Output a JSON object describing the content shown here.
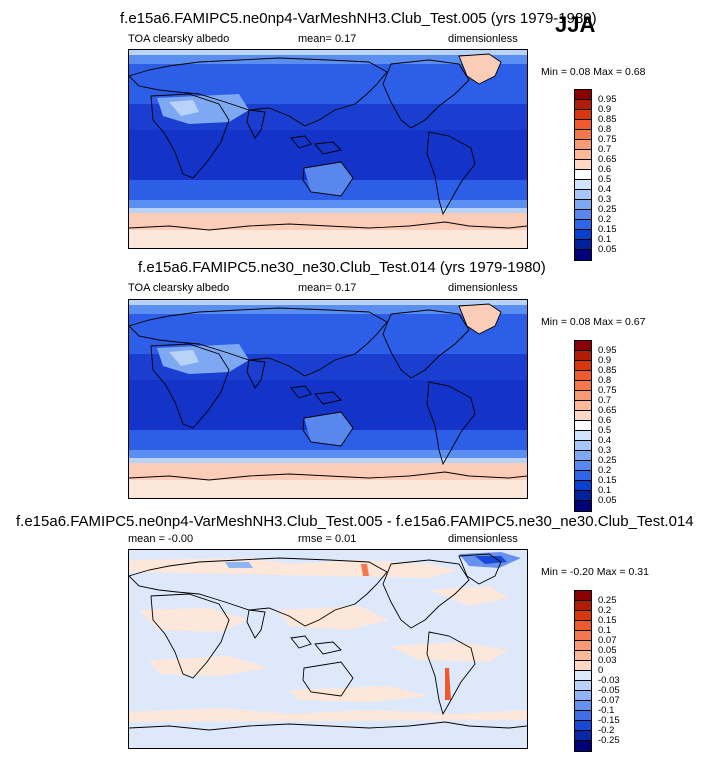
{
  "season": "JJA",
  "panels": [
    {
      "title": "f.e15a6.FAMIPC5.ne0np4-VarMeshNH3.Club_Test.005 (yrs 1979-1980)",
      "variable": "TOA clearsky albedo",
      "stat": "mean=  0.17",
      "units": "dimensionless",
      "minmax": "Min =  0.08 Max =  0.68",
      "levels": [
        "0.95",
        "0.9",
        "0.85",
        "0.8",
        "0.75",
        "0.7",
        "0.65",
        "0.6",
        "0.5",
        "0.4",
        "0.3",
        "0.25",
        "0.2",
        "0.15",
        "0.1",
        "0.05"
      ],
      "colors": [
        "#8b0000",
        "#b21b06",
        "#d9360e",
        "#ee5a2d",
        "#f4784e",
        "#f79a73",
        "#fbb99a",
        "#fed8c6",
        "#ffffff",
        "#d0e4fb",
        "#a7c7f7",
        "#7ea8f2",
        "#5888ee",
        "#2d66e6",
        "#0a40d1",
        "#00209d",
        "#000078"
      ]
    },
    {
      "title": "f.e15a6.FAMIPC5.ne30_ne30.Club_Test.014 (yrs 1979-1980)",
      "variable": "TOA clearsky albedo",
      "stat": "mean=  0.17",
      "units": "dimensionless",
      "minmax": "Min =  0.08 Max =  0.67",
      "levels": [
        "0.95",
        "0.9",
        "0.85",
        "0.8",
        "0.75",
        "0.7",
        "0.65",
        "0.6",
        "0.5",
        "0.4",
        "0.3",
        "0.25",
        "0.2",
        "0.15",
        "0.1",
        "0.05"
      ],
      "colors": [
        "#8b0000",
        "#b21b06",
        "#d9360e",
        "#ee5a2d",
        "#f4784e",
        "#f79a73",
        "#fbb99a",
        "#fed8c6",
        "#ffffff",
        "#d0e4fb",
        "#a7c7f7",
        "#7ea8f2",
        "#5888ee",
        "#2d66e6",
        "#0a40d1",
        "#00209d",
        "#000078"
      ]
    },
    {
      "title": "f.e15a6.FAMIPC5.ne0np4-VarMeshNH3.Club_Test.005 - f.e15a6.FAMIPC5.ne30_ne30.Club_Test.014",
      "variable": "mean =  -0.00",
      "stat": "rmse =  0.01",
      "units": "dimensionless",
      "minmax": "Min =  -0.20 Max =  0.31",
      "levels": [
        "0.25",
        "0.2",
        "0.15",
        "0.1",
        "0.07",
        "0.05",
        "0.03",
        "0",
        "-0.03",
        "-0.05",
        "-0.07",
        "-0.1",
        "-0.15",
        "-0.2",
        "-0.25"
      ],
      "colors": [
        "#8b0000",
        "#b21b06",
        "#d9360e",
        "#ee5a2d",
        "#f4784e",
        "#f79a73",
        "#fbb99a",
        "#fed8c6",
        "#dce9fb",
        "#b8d2f8",
        "#8fb4f3",
        "#6791ee",
        "#3f6ee8",
        "#1a48d6",
        "#0628a8",
        "#000078"
      ]
    }
  ],
  "palette": {
    "deep_blue": "#1333c9",
    "mid_blue": "#2d5ee8",
    "light_blue": "#5a8ef0",
    "pale_blue": "#b9d3f8",
    "peach": "#fbcdb8",
    "pale_peach": "#fde6da",
    "diff_blue": "#dde9fb"
  }
}
